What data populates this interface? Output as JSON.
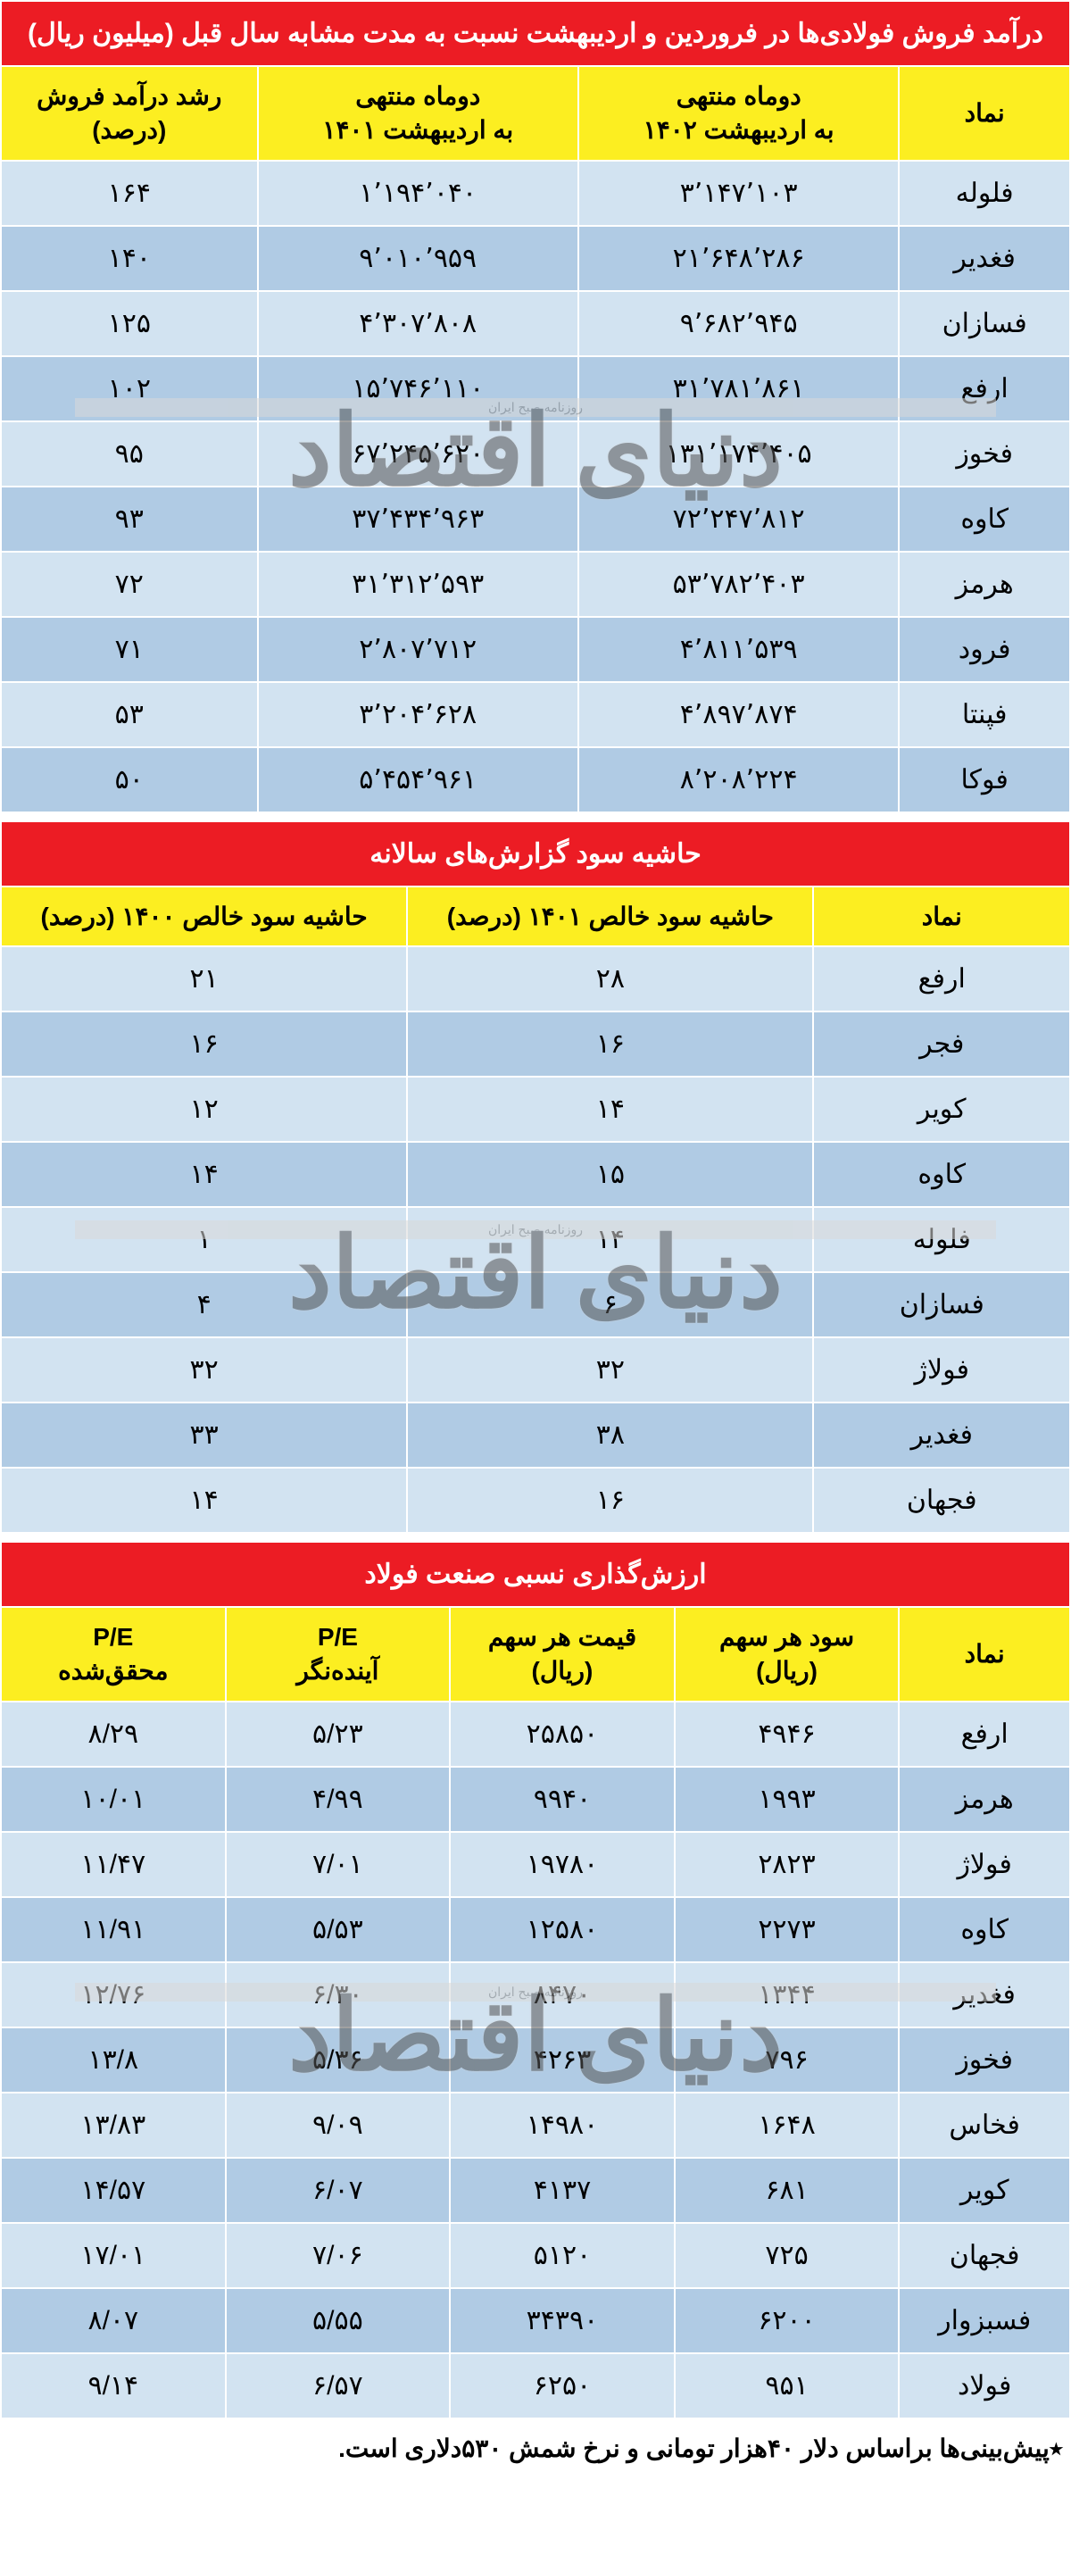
{
  "watermark": {
    "small": "روزنامه صبح ایران",
    "big": "دنیای اقتصاد",
    "background_color": "#d9d9d9",
    "text_color": "#808080",
    "big_color": "#555555"
  },
  "colors": {
    "title_bg": "#ec1c24",
    "title_fg": "#ffffff",
    "header_bg": "#fcee21",
    "header_fg": "#000000",
    "row_light": "#d2e3f1",
    "row_dark": "#b0cbe4",
    "cell_fg": "#000000",
    "border": "#ffffff"
  },
  "table1": {
    "type": "table",
    "title": "درآمد فروش فولادی‌ها در فروردین و اردیبهشت نسبت به مدت مشابه سال قبل (میلیون ریال)",
    "columns": [
      "نماد",
      "دوماه منتهی\nبه اردیبهشت ۱۴۰۲",
      "دوماه منتهی\nبه اردیبهشت ۱۴۰۱",
      "رشد درآمد فروش\n(درصد)"
    ],
    "col_widths": [
      "16%",
      "30%",
      "30%",
      "24%"
    ],
    "rows": [
      [
        "فلوله",
        "۳٬۱۴۷٬۱۰۳",
        "۱٬۱۹۴٬۰۴۰",
        "۱۶۴"
      ],
      [
        "فغدیر",
        "۲۱٬۶۴۸٬۲۸۶",
        "۹٬۰۱۰٬۹۵۹",
        "۱۴۰"
      ],
      [
        "فسازان",
        "۹٬۶۸۲٬۹۴۵",
        "۴٬۳۰۷٬۸۰۸",
        "۱۲۵"
      ],
      [
        "ارفع",
        "۳۱٬۷۸۱٬۸۶۱",
        "۱۵٬۷۴۶٬۱۱۰",
        "۱۰۲"
      ],
      [
        "فخوز",
        "۱۳۱٬۱۷۴٬۴۰۵",
        "۶۷٬۲۴۵٬۶۲۰",
        "۹۵"
      ],
      [
        "کاوه",
        "۷۲٬۲۴۷٬۸۱۲",
        "۳۷٬۴۳۴٬۹۶۳",
        "۹۳"
      ],
      [
        "هرمز",
        "۵۳٬۷۸۲٬۴۰۳",
        "۳۱٬۳۱۲٬۵۹۳",
        "۷۲"
      ],
      [
        "فرود",
        "۴٬۸۱۱٬۵۳۹",
        "۲٬۸۰۷٬۷۱۲",
        "۷۱"
      ],
      [
        "فپنتا",
        "۴٬۸۹۷٬۸۷۴",
        "۳٬۲۰۴٬۶۲۸",
        "۵۳"
      ],
      [
        "فوکا",
        "۸٬۲۰۸٬۲۲۴",
        "۵٬۴۵۴٬۹۶۱",
        "۵۰"
      ]
    ],
    "watermark_top_percent": 55
  },
  "table2": {
    "type": "table",
    "title": "حاشیه سود گزارش‌های سالانه",
    "columns": [
      "نماد",
      "حاشیه سود خالص ۱۴۰۱ (درصد)",
      "حاشیه سود خالص ۱۴۰۰ (درصد)"
    ],
    "col_widths": [
      "24%",
      "38%",
      "38%"
    ],
    "rows": [
      [
        "ارفع",
        "۲۸",
        "۲۱"
      ],
      [
        "فجر",
        "۱۶",
        "۱۶"
      ],
      [
        "کویر",
        "۱۴",
        "۱۲"
      ],
      [
        "کاوه",
        "۱۵",
        "۱۴"
      ],
      [
        "فلوله",
        "۱۴",
        "۱"
      ],
      [
        "فسازان",
        "۶",
        "۴"
      ],
      [
        "فولاژ",
        "۳۲",
        "۳۲"
      ],
      [
        "فغدیر",
        "۳۸",
        "۳۳"
      ],
      [
        "فجهان",
        "۱۶",
        "۱۴"
      ]
    ],
    "watermark_top_percent": 63
  },
  "table3": {
    "type": "table",
    "title": "ارزش‌گذاری نسبی صنعت فولاد",
    "columns": [
      "نماد",
      "سود هر سهم\n(ریال)",
      "قیمت هر سهم\n(ریال)",
      "P/E\nآینده‌نگر",
      "P/E\nمحقق‌شده"
    ],
    "col_widths": [
      "16%",
      "21%",
      "21%",
      "21%",
      "21%"
    ],
    "rows": [
      [
        "ارفع",
        "۴۹۴۶",
        "۲۵۸۵۰",
        "۵/۲۳",
        "۸/۲۹"
      ],
      [
        "هرمز",
        "۱۹۹۳",
        "۹۹۴۰",
        "۴/۹۹",
        "۱۰/۰۱"
      ],
      [
        "فولاژ",
        "۲۸۲۳",
        "۱۹۷۸۰",
        "۷/۰۱",
        "۱۱/۴۷"
      ],
      [
        "کاوه",
        "۲۲۷۳",
        "۱۲۵۸۰",
        "۵/۵۳",
        "۱۱/۹۱"
      ],
      [
        "فغدیر",
        "۱۳۴۴",
        "۸۴۷۰",
        "۶/۳۰",
        "۱۲/۷۶"
      ],
      [
        "فخوز",
        "۷۹۶",
        "۴۲۶۳",
        "۵/۳۶",
        "۱۳/۸"
      ],
      [
        "فخاس",
        "۱۶۴۸",
        "۱۴۹۸۰",
        "۹/۰۹",
        "۱۳/۸۳"
      ],
      [
        "کویر",
        "۶۸۱",
        "۴۱۳۷",
        "۶/۰۷",
        "۱۴/۵۷"
      ],
      [
        "فجهان",
        "۷۲۵",
        "۵۱۲۰",
        "۷/۰۶",
        "۱۷/۰۱"
      ],
      [
        "فسبزوار",
        "۶۲۰۰",
        "۳۴۳۹۰",
        "۵/۵۵",
        "۸/۰۷"
      ],
      [
        "فولاد",
        "۹۵۱",
        "۶۲۵۰",
        "۶/۵۷",
        "۹/۱۴"
      ]
    ],
    "footnote": "٭پیش‌بینی‌ها براساس دلار ۴۰هزار تومانی و نرخ شمش ۵۳۰دلاری است.",
    "watermark_top_percent": 53
  }
}
